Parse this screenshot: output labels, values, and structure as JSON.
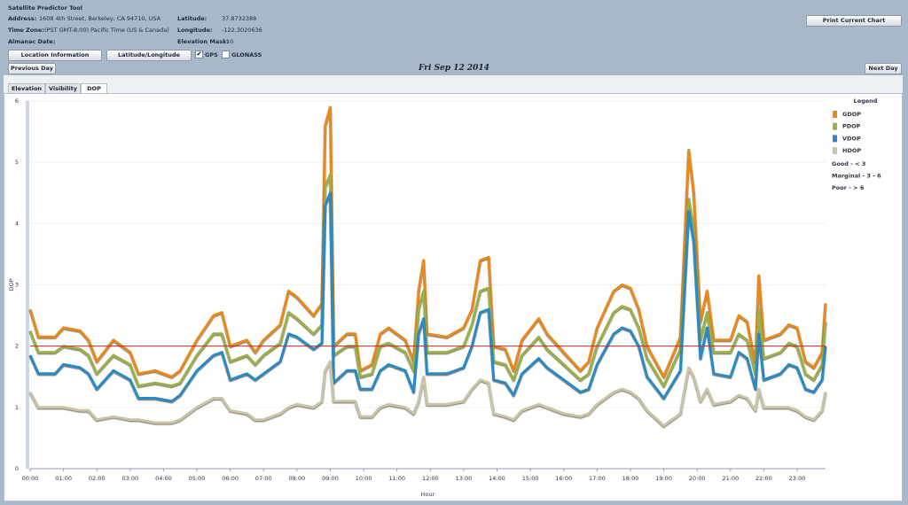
{
  "header": {
    "title": "Satellite Predictor Tool",
    "fields_left": [
      {
        "label": "Address:",
        "value": "1608 4th Street, Berkeley, CA 94710, USA"
      },
      {
        "label": "Time Zone:",
        "value": "(PST GMT-8:00) Pacific Time (US & Canada)"
      },
      {
        "label": "Almanac Date:"
      }
    ],
    "fields_right": [
      {
        "label": "Latitude:",
        "value": "37.8732388"
      },
      {
        "label": "Longitude:",
        "value": "-122.3020636"
      },
      {
        "label": "Elevation Mask:",
        "value": "10"
      }
    ],
    "buttons": [
      "Location Information",
      "Latitude/Longitude"
    ],
    "checkboxes": [
      {
        "label": "GPS",
        "checked": true
      },
      {
        "label": "GLONASS",
        "checked": false
      }
    ],
    "print_button": "Print Current Chart"
  },
  "nav": {
    "previous": "Previous Day",
    "date": "Fri Sep 12 2014",
    "next": "Next Day"
  },
  "tabs": [
    "Elevation",
    "Visibility",
    "DOP"
  ],
  "chart_data": {
    "type": "line",
    "ylabel": "DOP",
    "xlabel": "Hour",
    "x": [
      0,
      0.25,
      0.75,
      1,
      1.5,
      1.75,
      2,
      2.5,
      3,
      3.25,
      3.75,
      4.25,
      4.5,
      5,
      5.5,
      5.75,
      6,
      6.5,
      6.75,
      7,
      7.5,
      7.75,
      8,
      8.5,
      8.75,
      8.85,
      9,
      9.1,
      9.5,
      9.75,
      9.9,
      10.25,
      10.5,
      10.75,
      11.25,
      11.5,
      11.65,
      11.8,
      11.9,
      12.5,
      13,
      13.25,
      13.5,
      13.75,
      13.9,
      14.25,
      14.5,
      14.75,
      15.25,
      15.5,
      16,
      16.5,
      16.75,
      17,
      17.5,
      17.75,
      18,
      18.25,
      18.5,
      19,
      19.5,
      19.75,
      19.9,
      20.1,
      20.3,
      20.5,
      21,
      21.25,
      21.5,
      21.75,
      21.85,
      22,
      22.5,
      22.75,
      23,
      23.25,
      23.5,
      23.75,
      23.85
    ],
    "series": [
      {
        "name": "GDOP",
        "color": "#e8891d",
        "values": [
          2.6,
          2.15,
          2.15,
          2.3,
          2.25,
          2.1,
          1.75,
          2.1,
          1.9,
          1.55,
          1.6,
          1.5,
          1.6,
          2.1,
          2.5,
          2.55,
          2.0,
          2.1,
          1.9,
          2.1,
          2.35,
          2.9,
          2.8,
          2.5,
          2.7,
          5.6,
          5.9,
          2.0,
          2.2,
          2.2,
          1.6,
          1.7,
          2.2,
          2.3,
          2.1,
          1.75,
          2.9,
          3.4,
          2.2,
          2.15,
          2.3,
          2.6,
          3.4,
          3.45,
          2.0,
          1.95,
          1.6,
          2.1,
          2.45,
          2.2,
          1.9,
          1.6,
          1.75,
          2.3,
          2.9,
          3.0,
          2.95,
          2.6,
          2.0,
          1.5,
          2.15,
          5.2,
          4.5,
          2.4,
          2.9,
          2.1,
          2.1,
          2.5,
          2.4,
          1.7,
          3.15,
          2.1,
          2.2,
          2.35,
          2.3,
          1.75,
          1.65,
          1.9,
          2.7
        ]
      },
      {
        "name": "PDOP",
        "color": "#9bb04a",
        "values": [
          2.25,
          1.9,
          1.9,
          2.0,
          1.95,
          1.85,
          1.55,
          1.85,
          1.7,
          1.35,
          1.4,
          1.35,
          1.4,
          1.85,
          2.2,
          2.2,
          1.75,
          1.85,
          1.7,
          1.85,
          2.05,
          2.55,
          2.45,
          2.2,
          2.35,
          4.6,
          4.8,
          1.85,
          2.0,
          2.0,
          1.5,
          1.55,
          2.0,
          2.05,
          1.9,
          1.6,
          2.6,
          2.9,
          1.9,
          1.9,
          2.0,
          2.35,
          2.9,
          2.95,
          1.75,
          1.7,
          1.45,
          1.85,
          2.15,
          1.95,
          1.7,
          1.45,
          1.55,
          2.0,
          2.55,
          2.65,
          2.6,
          2.3,
          1.8,
          1.35,
          1.95,
          4.4,
          3.9,
          2.1,
          2.55,
          1.9,
          1.9,
          2.2,
          2.1,
          1.55,
          2.6,
          1.8,
          1.9,
          2.05,
          2.0,
          1.55,
          1.45,
          1.7,
          2.4
        ]
      },
      {
        "name": "VDOP",
        "color": "#2a8ac4",
        "values": [
          1.85,
          1.55,
          1.55,
          1.7,
          1.65,
          1.55,
          1.3,
          1.6,
          1.45,
          1.15,
          1.15,
          1.1,
          1.2,
          1.6,
          1.85,
          1.9,
          1.45,
          1.55,
          1.45,
          1.55,
          1.75,
          2.2,
          2.15,
          1.95,
          2.05,
          4.3,
          4.5,
          1.4,
          1.6,
          1.6,
          1.3,
          1.3,
          1.6,
          1.7,
          1.6,
          1.25,
          2.2,
          2.45,
          1.55,
          1.55,
          1.65,
          2.0,
          2.55,
          2.6,
          1.45,
          1.4,
          1.2,
          1.55,
          1.8,
          1.65,
          1.45,
          1.25,
          1.3,
          1.7,
          2.2,
          2.3,
          2.25,
          2.0,
          1.5,
          1.15,
          1.6,
          4.2,
          3.7,
          1.8,
          2.3,
          1.55,
          1.5,
          1.9,
          1.8,
          1.3,
          2.2,
          1.45,
          1.55,
          1.7,
          1.65,
          1.3,
          1.25,
          1.45,
          2.0
        ]
      },
      {
        "name": "HDOP",
        "color": "#c8c4a8",
        "values": [
          1.25,
          1.0,
          1.0,
          1.0,
          0.95,
          0.95,
          0.8,
          0.85,
          0.8,
          0.8,
          0.75,
          0.75,
          0.8,
          1.0,
          1.15,
          1.15,
          0.95,
          0.9,
          0.8,
          0.8,
          0.9,
          1.0,
          1.05,
          1.0,
          1.1,
          1.6,
          1.75,
          1.1,
          1.1,
          1.1,
          0.85,
          0.85,
          1.0,
          1.05,
          1.0,
          0.9,
          1.1,
          1.5,
          1.05,
          1.05,
          1.1,
          1.3,
          1.45,
          1.4,
          0.9,
          0.85,
          0.8,
          0.95,
          1.05,
          1.0,
          0.9,
          0.85,
          0.9,
          1.05,
          1.25,
          1.3,
          1.25,
          1.15,
          0.95,
          0.7,
          0.9,
          1.65,
          1.5,
          1.1,
          1.3,
          1.05,
          1.1,
          1.2,
          1.15,
          0.95,
          1.3,
          1.0,
          1.0,
          1.0,
          0.95,
          0.85,
          0.8,
          0.95,
          1.25
        ]
      }
    ],
    "xlim": [
      0,
      23.85
    ],
    "xticks": [
      {
        "value": 0,
        "label": "00:00"
      },
      {
        "value": 1,
        "label": "01:00"
      },
      {
        "value": 2,
        "label": "02:00"
      },
      {
        "value": 3,
        "label": "03:00"
      },
      {
        "value": 4,
        "label": "04:00"
      },
      {
        "value": 5,
        "label": "05:00"
      },
      {
        "value": 6,
        "label": "06:00"
      },
      {
        "value": 7,
        "label": "07:00"
      },
      {
        "value": 8,
        "label": "08:00"
      },
      {
        "value": 9,
        "label": "09:00"
      },
      {
        "value": 10,
        "label": "10:00"
      },
      {
        "value": 11,
        "label": "11:00"
      },
      {
        "value": 12,
        "label": "12:00"
      },
      {
        "value": 13,
        "label": "13:00"
      },
      {
        "value": 14,
        "label": "14:00"
      },
      {
        "value": 15,
        "label": "15:00"
      },
      {
        "value": 16,
        "label": "16:00"
      },
      {
        "value": 17,
        "label": "17:00"
      },
      {
        "value": 18,
        "label": "18:00"
      },
      {
        "value": 19,
        "label": "19:00"
      },
      {
        "value": 20,
        "label": "20:00"
      },
      {
        "value": 21,
        "label": "21:00"
      },
      {
        "value": 22,
        "label": "22:00"
      },
      {
        "value": 23,
        "label": "23:00"
      }
    ],
    "ylim": [
      0,
      6
    ],
    "yticks": [
      0,
      1,
      2,
      3,
      4,
      5,
      6
    ],
    "grid": true,
    "reference_line": {
      "value": 2,
      "color": "#c0292b"
    },
    "legend": {
      "title": "Legend",
      "position": "right",
      "notes": [
        "Good - < 3",
        "Marginal - 3 - 6",
        "Poor - > 6"
      ]
    }
  }
}
